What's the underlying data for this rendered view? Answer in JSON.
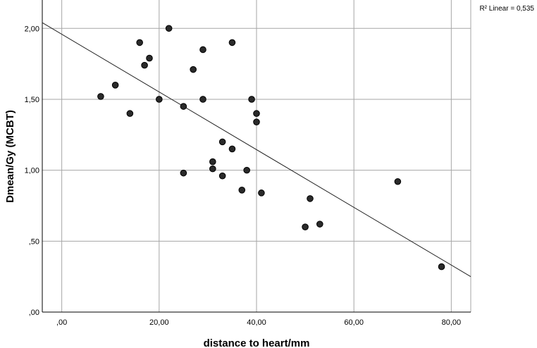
{
  "chart_data": {
    "type": "scatter",
    "title": "",
    "xlabel": "distance to heart/mm",
    "ylabel": "Dmean/Gy (MCBT)",
    "xlim": [
      -4,
      84
    ],
    "ylim": [
      0,
      2.2
    ],
    "x_ticks": [
      0,
      20,
      40,
      60,
      80
    ],
    "x_tick_labels": [
      ",00",
      "20,00",
      "40,00",
      "60,00",
      "80,00"
    ],
    "y_ticks": [
      0,
      0.5,
      1.0,
      1.5,
      2.0
    ],
    "y_tick_labels": [
      ",00",
      ",50",
      "1,00",
      "1,50",
      "2,00"
    ],
    "grid": true,
    "points": [
      {
        "x": 8,
        "y": 1.52
      },
      {
        "x": 11,
        "y": 1.6
      },
      {
        "x": 14,
        "y": 1.4
      },
      {
        "x": 16,
        "y": 1.9
      },
      {
        "x": 17,
        "y": 1.74
      },
      {
        "x": 18,
        "y": 1.79
      },
      {
        "x": 20,
        "y": 1.5
      },
      {
        "x": 22,
        "y": 2.0
      },
      {
        "x": 25,
        "y": 1.45
      },
      {
        "x": 25,
        "y": 0.98
      },
      {
        "x": 27,
        "y": 1.71
      },
      {
        "x": 29,
        "y": 1.85
      },
      {
        "x": 29,
        "y": 1.5
      },
      {
        "x": 31,
        "y": 1.06
      },
      {
        "x": 31,
        "y": 1.01
      },
      {
        "x": 33,
        "y": 1.2
      },
      {
        "x": 33,
        "y": 0.96
      },
      {
        "x": 35,
        "y": 1.9
      },
      {
        "x": 35,
        "y": 1.15
      },
      {
        "x": 37,
        "y": 0.86
      },
      {
        "x": 38,
        "y": 1.0
      },
      {
        "x": 39,
        "y": 1.5
      },
      {
        "x": 40,
        "y": 1.4
      },
      {
        "x": 40,
        "y": 1.34
      },
      {
        "x": 41,
        "y": 0.84
      },
      {
        "x": 50,
        "y": 0.6
      },
      {
        "x": 51,
        "y": 0.8
      },
      {
        "x": 53,
        "y": 0.62
      },
      {
        "x": 69,
        "y": 0.92
      },
      {
        "x": 78,
        "y": 0.32
      }
    ],
    "fit_line": {
      "x0": -4,
      "y0": 2.04,
      "x1": 84,
      "y1": 0.25
    },
    "r2_label": "R² Linear = 0,535"
  }
}
